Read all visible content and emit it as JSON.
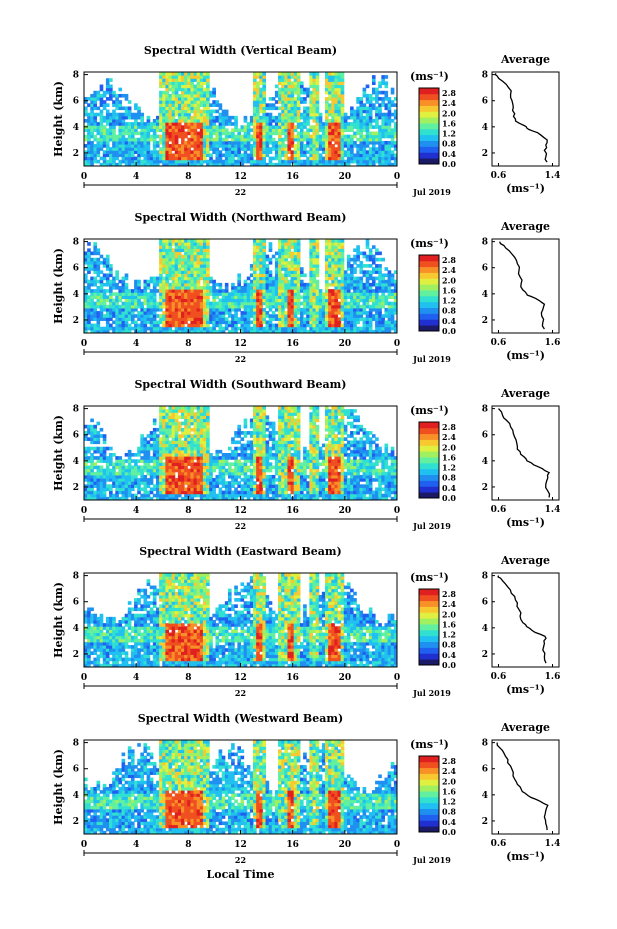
{
  "chart_data": {
    "type": "heatmap",
    "panels": [
      {
        "title": "Spectral Width (Vertical Beam)",
        "ylabel": "Height (km)",
        "yticks": [
          "2",
          "4",
          "6",
          "8"
        ],
        "xticks": [
          "0",
          "4",
          "8",
          "12",
          "16",
          "20",
          "0"
        ],
        "day_label": "22",
        "date_label": "Jul 2019",
        "colorbar_unit": "(ms⁻¹)",
        "colorbar_ticks": [
          "0.0",
          "0.4",
          "0.8",
          "1.2",
          "1.6",
          "2.0",
          "2.4",
          "2.8"
        ],
        "avg_title": "Average",
        "avg_xticks": [
          "0.6",
          "1.4"
        ],
        "avg_xlabel": "(ms⁻¹)",
        "avg_yticks": [
          "2",
          "4",
          "6",
          "8"
        ],
        "avg_profile": [
          [
            1.32,
            1.3
          ],
          [
            1.3,
            1.7
          ],
          [
            1.28,
            2.2
          ],
          [
            1.3,
            2.6
          ],
          [
            1.32,
            3.0
          ],
          [
            1.22,
            3.4
          ],
          [
            1.1,
            3.7
          ],
          [
            1.02,
            3.9
          ],
          [
            0.98,
            4.1
          ],
          [
            0.9,
            4.3
          ],
          [
            0.85,
            4.6
          ],
          [
            0.84,
            5.0
          ],
          [
            0.82,
            5.5
          ],
          [
            0.8,
            6.0
          ],
          [
            0.78,
            6.5
          ],
          [
            0.75,
            7.0
          ],
          [
            0.66,
            7.5
          ],
          [
            0.58,
            7.9
          ],
          [
            0.56,
            8.1
          ]
        ]
      },
      {
        "title": "Spectral Width (Northward Beam)",
        "ylabel": "Height (km)",
        "yticks": [
          "2",
          "4",
          "6",
          "8"
        ],
        "xticks": [
          "0",
          "4",
          "8",
          "12",
          "16",
          "20",
          "0"
        ],
        "day_label": "22",
        "date_label": "Jul 2019",
        "colorbar_unit": "(ms⁻¹)",
        "colorbar_ticks": [
          "0.0",
          "0.4",
          "0.8",
          "1.2",
          "1.6",
          "2.0",
          "2.4",
          "2.8"
        ],
        "avg_title": "Average",
        "avg_xticks": [
          "0.6",
          "1.6"
        ],
        "avg_xlabel": "(ms⁻¹)",
        "avg_yticks": [
          "2",
          "4",
          "6",
          "8"
        ],
        "avg_profile": [
          [
            1.45,
            1.3
          ],
          [
            1.42,
            1.8
          ],
          [
            1.4,
            2.3
          ],
          [
            1.42,
            2.8
          ],
          [
            1.45,
            3.2
          ],
          [
            1.35,
            3.5
          ],
          [
            1.2,
            3.8
          ],
          [
            1.12,
            4.0
          ],
          [
            1.05,
            4.3
          ],
          [
            1.02,
            4.8
          ],
          [
            1.0,
            5.3
          ],
          [
            0.98,
            5.8
          ],
          [
            0.95,
            6.3
          ],
          [
            0.9,
            6.8
          ],
          [
            0.8,
            7.3
          ],
          [
            0.7,
            7.7
          ],
          [
            0.62,
            8.0
          ]
        ]
      },
      {
        "title": "Spectral Width (Southward Beam)",
        "ylabel": "Height (km)",
        "yticks": [
          "2",
          "4",
          "6",
          "8"
        ],
        "xticks": [
          "0",
          "4",
          "8",
          "12",
          "16",
          "20",
          "0"
        ],
        "day_label": "22",
        "date_label": "Jul 2019",
        "colorbar_unit": "(ms⁻¹)",
        "colorbar_ticks": [
          "0.0",
          "0.4",
          "0.8",
          "1.2",
          "1.6",
          "2.0",
          "2.4",
          "2.8"
        ],
        "avg_title": "Average",
        "avg_xticks": [
          "0.6",
          "1.4"
        ],
        "avg_xlabel": "(ms⁻¹)",
        "avg_yticks": [
          "2",
          "4",
          "6",
          "8"
        ],
        "avg_profile": [
          [
            1.35,
            1.2
          ],
          [
            1.33,
            1.7
          ],
          [
            1.3,
            2.2
          ],
          [
            1.33,
            2.7
          ],
          [
            1.35,
            3.1
          ],
          [
            1.25,
            3.4
          ],
          [
            1.12,
            3.7
          ],
          [
            1.02,
            4.0
          ],
          [
            0.98,
            4.3
          ],
          [
            0.92,
            4.7
          ],
          [
            0.88,
            5.1
          ],
          [
            0.86,
            5.6
          ],
          [
            0.82,
            6.1
          ],
          [
            0.78,
            6.6
          ],
          [
            0.72,
            7.1
          ],
          [
            0.66,
            7.5
          ],
          [
            0.6,
            8.0
          ]
        ]
      },
      {
        "title": "Spectral Width (Eastward Beam)",
        "ylabel": "Height (km)",
        "yticks": [
          "2",
          "4",
          "6",
          "8"
        ],
        "xticks": [
          "0",
          "4",
          "8",
          "12",
          "16",
          "20",
          "0"
        ],
        "day_label": "22",
        "date_label": "Jul 2019",
        "colorbar_unit": "(ms⁻¹)",
        "colorbar_ticks": [
          "0.0",
          "0.4",
          "0.8",
          "1.2",
          "1.6",
          "2.0",
          "2.4",
          "2.8"
        ],
        "avg_title": "Average",
        "avg_xticks": [
          "0.6",
          "1.6"
        ],
        "avg_xlabel": "(ms⁻¹)",
        "avg_yticks": [
          "2",
          "4",
          "6",
          "8"
        ],
        "avg_profile": [
          [
            1.48,
            1.3
          ],
          [
            1.45,
            1.8
          ],
          [
            1.42,
            2.3
          ],
          [
            1.45,
            2.8
          ],
          [
            1.48,
            3.2
          ],
          [
            1.38,
            3.5
          ],
          [
            1.22,
            3.8
          ],
          [
            1.12,
            4.1
          ],
          [
            1.05,
            4.4
          ],
          [
            1.0,
            4.9
          ],
          [
            0.98,
            5.4
          ],
          [
            0.95,
            5.9
          ],
          [
            0.9,
            6.4
          ],
          [
            0.82,
            6.9
          ],
          [
            0.72,
            7.4
          ],
          [
            0.64,
            7.8
          ],
          [
            0.6,
            8.0
          ]
        ]
      },
      {
        "title": "Spectral Width (Westward Beam)",
        "ylabel": "Height (km)",
        "yticks": [
          "2",
          "4",
          "6",
          "8"
        ],
        "xticks": [
          "0",
          "4",
          "8",
          "12",
          "16",
          "20",
          "0"
        ],
        "day_label": "22",
        "date_label": "Jul 2019",
        "xlabel": "Local Time",
        "colorbar_unit": "(ms⁻¹)",
        "colorbar_ticks": [
          "0.0",
          "0.4",
          "0.8",
          "1.2",
          "1.6",
          "2.0",
          "2.4",
          "2.8"
        ],
        "avg_title": "Average",
        "avg_xticks": [
          "0.6",
          "1.4"
        ],
        "avg_xlabel": "(ms⁻¹)",
        "avg_yticks": [
          "2",
          "4",
          "6",
          "8"
        ],
        "avg_profile": [
          [
            1.32,
            1.3
          ],
          [
            1.3,
            1.8
          ],
          [
            1.28,
            2.3
          ],
          [
            1.3,
            2.8
          ],
          [
            1.33,
            3.2
          ],
          [
            1.22,
            3.5
          ],
          [
            1.08,
            3.8
          ],
          [
            1.0,
            4.1
          ],
          [
            0.94,
            4.4
          ],
          [
            0.88,
            4.8
          ],
          [
            0.84,
            5.2
          ],
          [
            0.82,
            5.7
          ],
          [
            0.78,
            6.2
          ],
          [
            0.74,
            6.7
          ],
          [
            0.68,
            7.2
          ],
          [
            0.62,
            7.6
          ],
          [
            0.58,
            8.0
          ]
        ]
      }
    ],
    "heatmap_x_range": [
      0,
      24
    ],
    "heatmap_y_range": [
      1,
      8.2
    ],
    "colorbar_range": [
      0,
      3.0
    ],
    "intense_columns_hours": [
      [
        6.3,
        9.2
      ],
      [
        13.1,
        13.6
      ],
      [
        15.5,
        16.2
      ],
      [
        18.8,
        19.6
      ]
    ],
    "tall_columns_hours": [
      [
        5.8,
        9.5
      ],
      [
        13.0,
        13.8
      ],
      [
        14.8,
        16.6
      ],
      [
        17.3,
        18.0
      ],
      [
        18.6,
        19.8
      ]
    ],
    "colorscale": [
      "#1a1a66",
      "#2030d0",
      "#2060f0",
      "#2090f0",
      "#20c0f0",
      "#30e0d0",
      "#60f0a0",
      "#a0f060",
      "#e0f040",
      "#f8c830",
      "#f89028",
      "#f05020",
      "#e02020"
    ]
  }
}
